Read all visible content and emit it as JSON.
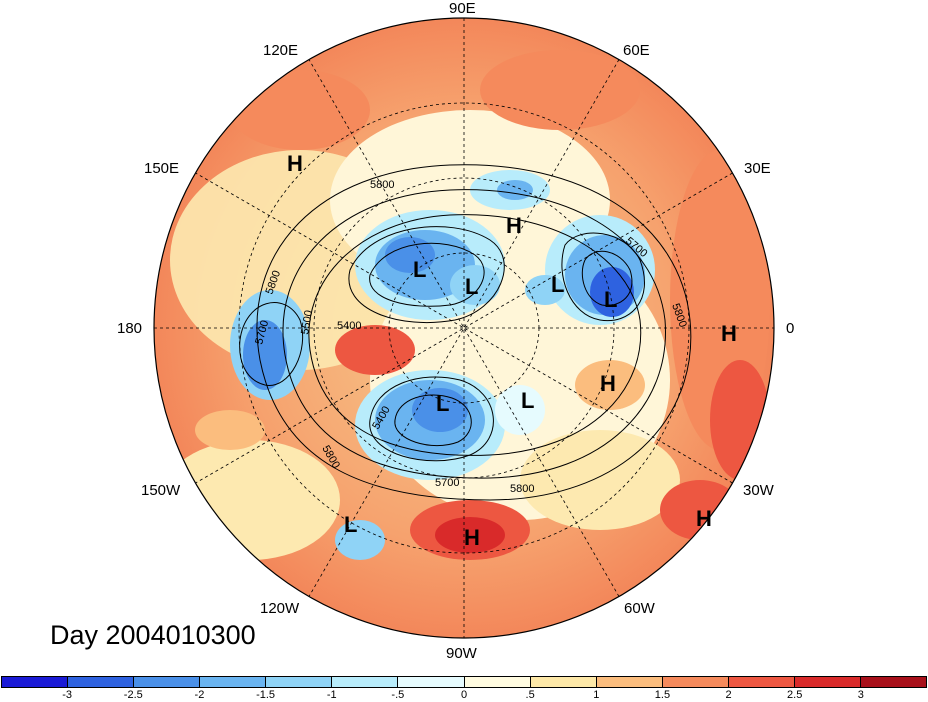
{
  "title": "Day 2004010300",
  "longitude_labels": [
    "90E",
    "60E",
    "30E",
    "0",
    "30W",
    "60W",
    "90W",
    "120W",
    "150W",
    "180",
    "150E",
    "120E"
  ],
  "contour_labels": [
    "5800",
    "5700",
    "5800",
    "5800",
    "5500",
    "5400",
    "5700",
    "5800",
    "5400",
    "5800",
    "5700",
    "5800"
  ],
  "markers": [
    {
      "label": "H",
      "region": "northeast Pacific / Alaska side"
    },
    {
      "label": "H",
      "region": "Arctic near Siberia"
    },
    {
      "label": "L",
      "region": "Siberia"
    },
    {
      "label": "L",
      "region": "Siberia"
    },
    {
      "label": "L",
      "region": "Arctic"
    },
    {
      "label": "L",
      "region": "Scandinavia"
    },
    {
      "label": "H",
      "region": "western Europe Atlantic"
    },
    {
      "label": "H",
      "region": "north Atlantic"
    },
    {
      "label": "L",
      "region": "Canada"
    },
    {
      "label": "L",
      "region": "Labrador"
    },
    {
      "label": "L",
      "region": "eastern Pacific"
    },
    {
      "label": "H",
      "region": "Caribbean"
    },
    {
      "label": "H",
      "region": "subtropical Atlantic"
    }
  ],
  "colorbar": {
    "ticks": [
      "-3",
      "-2.5",
      "-2",
      "-1.5",
      "-1",
      "-.5",
      "0",
      ".5",
      "1",
      "1.5",
      "2",
      "2.5",
      "3"
    ],
    "colors": [
      "#1a1ad6",
      "#2e62e0",
      "#4a90e8",
      "#6ab4f0",
      "#8fd3f6",
      "#b8ecfb",
      "#e6fbfe",
      "#fffbe0",
      "#fde8a8",
      "#fbbd7e",
      "#f58a5c",
      "#ed5741",
      "#d92a2a",
      "#a8101a"
    ]
  },
  "legend": {
    "colors": {
      "positive": "#f58a5c",
      "negative": "#4a90e8",
      "neutral": "#fffbe0"
    }
  }
}
